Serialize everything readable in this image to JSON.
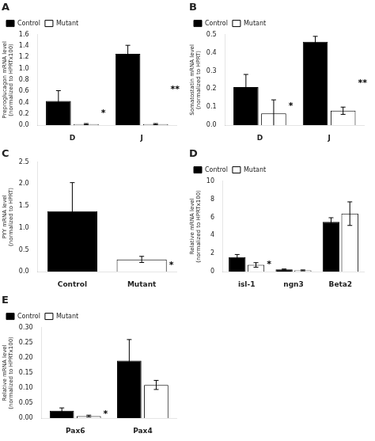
{
  "chart_data": [
    {
      "type": "bar",
      "title": "A",
      "categories": [
        "D",
        "J"
      ],
      "series": [
        {
          "name": "Control",
          "color": "#000000",
          "values": [
            0.43,
            1.26
          ],
          "errors": [
            0.18,
            0.15
          ]
        },
        {
          "name": "Mutant",
          "color": "#ffffff",
          "values": [
            0.02,
            0.02
          ],
          "errors": [
            0.01,
            0.01
          ]
        }
      ],
      "ylabel": "Preproglucagon mRNA level\n(normalized to HPRTx100)",
      "ylim": [
        0,
        1.6
      ],
      "yticks": [
        {
          "value": 0,
          "label": "0.0"
        },
        0.2,
        0.4,
        0.6,
        0.8,
        {
          "value": 1.0,
          "label": "1.0"
        },
        1.2,
        1.4,
        1.6
      ],
      "annotations": [
        {
          "text": "*",
          "category": "D"
        },
        {
          "text": "**",
          "category": "J"
        }
      ],
      "legend": "upper left",
      "grid": false
    },
    {
      "type": "bar",
      "title": "B",
      "categories": [
        "D",
        "J"
      ],
      "series": [
        {
          "name": "Control",
          "color": "#000000",
          "values": [
            0.21,
            0.46
          ],
          "errors": [
            0.07,
            0.03
          ]
        },
        {
          "name": "Mutant",
          "color": "#ffffff",
          "values": [
            0.065,
            0.08
          ],
          "errors": [
            0.075,
            0.02
          ]
        }
      ],
      "ylabel": "Somatostatin mRNA level\n(normalized to HPRT)",
      "ylim": [
        0,
        0.5
      ],
      "yticks": [
        {
          "value": 0,
          "label": "0.0"
        },
        0.1,
        0.2,
        0.3,
        0.4,
        0.5
      ],
      "annotations": [
        {
          "text": "*",
          "category": "D"
        },
        {
          "text": "**",
          "category": "J"
        }
      ],
      "legend": "upper left",
      "grid": false
    },
    {
      "type": "bar",
      "title": "C",
      "categories": [
        "Control",
        "Mutant"
      ],
      "values": [
        1.38,
        0.28
      ],
      "errors": [
        0.65,
        0.07
      ],
      "colors": [
        "#000000",
        "#ffffff"
      ],
      "ylabel": "PYY mRNA level\n(normalized to HPRT)",
      "ylim": [
        0,
        2.5
      ],
      "yticks": [
        {
          "value": 0,
          "label": "0.0"
        },
        0.5,
        {
          "value": 1.0,
          "label": "1.0"
        },
        1.5,
        {
          "value": 2.0,
          "label": "2.0"
        },
        2.5
      ],
      "annotations": [
        {
          "text": "*",
          "category": "Mutant"
        }
      ],
      "grid": false
    },
    {
      "type": "bar",
      "title": "D",
      "categories": [
        "isl-1",
        "ngn3",
        "Beta2"
      ],
      "series": [
        {
          "name": "Control",
          "color": "#000000",
          "values": [
            1.6,
            0.25,
            5.5
          ],
          "errors": [
            0.3,
            0.05,
            0.45
          ]
        },
        {
          "name": "Mutant",
          "color": "#ffffff",
          "values": [
            0.75,
            0.15,
            6.4
          ],
          "errors": [
            0.25,
            0.05,
            1.3
          ]
        }
      ],
      "ylabel": "Relative mRNA level\n(normalized to HPRTx100)",
      "ylim": [
        0,
        10
      ],
      "yticks": [
        0,
        2,
        4,
        6,
        8,
        10
      ],
      "annotations": [
        {
          "text": "*",
          "category": "isl-1"
        }
      ],
      "legend": "upper left",
      "grid": false
    },
    {
      "type": "bar",
      "title": "E",
      "categories": [
        "Pax6",
        "Pax4"
      ],
      "series": [
        {
          "name": "Control",
          "color": "#000000",
          "values": [
            0.025,
            0.19
          ],
          "errors": [
            0.009,
            0.07
          ]
        },
        {
          "name": "Mutant",
          "color": "#ffffff",
          "values": [
            0.007,
            0.11
          ],
          "errors": [
            0.003,
            0.015
          ]
        }
      ],
      "ylabel": "Relative mRNA level\n(normalized to HPRTx100)",
      "ylim": [
        0,
        0.3
      ],
      "yticks": [
        {
          "value": 0,
          "label": "0.00"
        },
        0.05,
        {
          "value": 0.1,
          "label": "0.10"
        },
        0.15,
        {
          "value": 0.2,
          "label": "0.20"
        },
        0.25,
        {
          "value": 0.3,
          "label": "0.30"
        }
      ],
      "annotations": [
        {
          "text": "*",
          "category": "Pax6"
        }
      ],
      "legend": "upper left",
      "grid": false
    }
  ]
}
